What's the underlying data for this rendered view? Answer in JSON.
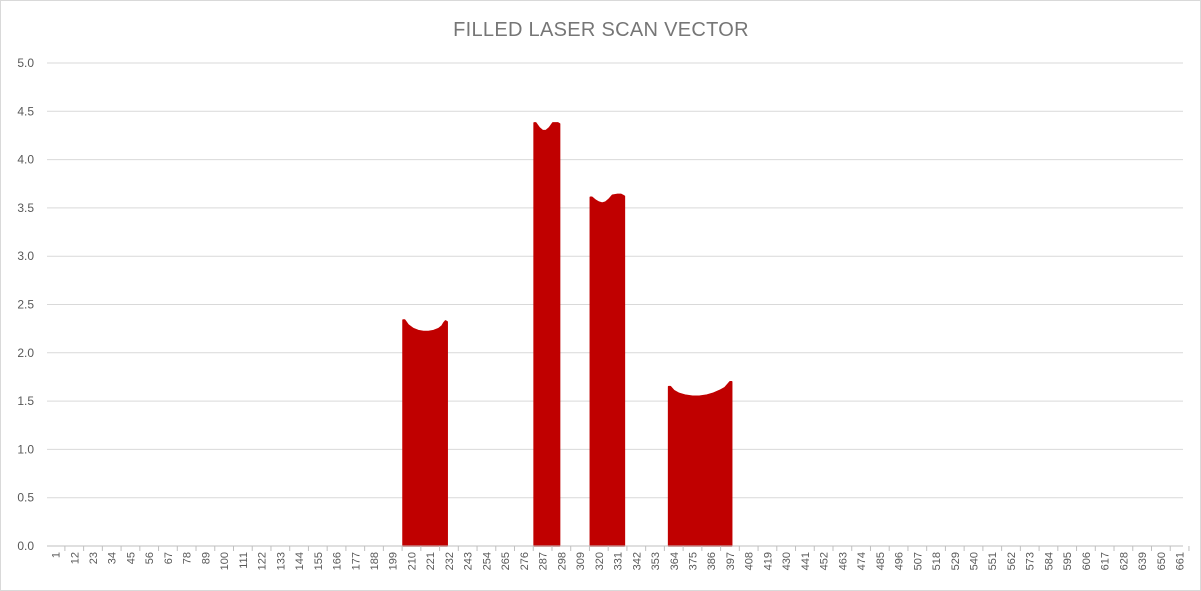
{
  "chart_data": {
    "type": "area",
    "title": "FILLED LASER SCAN VECTOR",
    "xlabel": "",
    "ylabel": "",
    "ylim": [
      0,
      5
    ],
    "y_ticks": [
      "0.0",
      "0.5",
      "1.0",
      "1.5",
      "2.0",
      "2.5",
      "3.0",
      "3.5",
      "4.0",
      "4.5",
      "5.0"
    ],
    "x_range": [
      1,
      668
    ],
    "x_ticks": [
      "1",
      "12",
      "23",
      "34",
      "45",
      "56",
      "67",
      "78",
      "89",
      "100",
      "111",
      "122",
      "133",
      "144",
      "155",
      "166",
      "177",
      "188",
      "199",
      "210",
      "221",
      "232",
      "243",
      "254",
      "265",
      "276",
      "287",
      "298",
      "309",
      "320",
      "331",
      "342",
      "353",
      "364",
      "375",
      "386",
      "397",
      "408",
      "419",
      "430",
      "441",
      "452",
      "463",
      "474",
      "485",
      "496",
      "507",
      "518",
      "529",
      "540",
      "551",
      "562",
      "573",
      "584",
      "595",
      "606",
      "617",
      "628",
      "639",
      "650",
      "661"
    ],
    "grid": true,
    "legend": "none",
    "color": "#c00000",
    "series": [
      {
        "x": [
          210,
          211,
          213,
          216,
          219,
          222,
          225,
          228,
          231,
          233,
          234,
          235,
          236,
          287,
          288,
          290,
          292,
          294,
          296,
          298,
          300,
          301,
          302,
          320,
          321,
          323,
          325,
          327,
          329,
          331,
          333,
          336,
          338,
          339,
          340,
          366,
          367,
          369,
          372,
          376,
          380,
          384,
          388,
          392,
          396,
          399,
          401,
          402,
          403
        ],
        "y": [
          2.34,
          2.34,
          2.29,
          2.25,
          2.23,
          2.22,
          2.22,
          2.23,
          2.25,
          2.28,
          2.31,
          2.33,
          2.32,
          4.38,
          4.38,
          4.33,
          4.3,
          4.3,
          4.33,
          4.38,
          4.38,
          4.38,
          4.37,
          3.61,
          3.61,
          3.58,
          3.56,
          3.55,
          3.56,
          3.59,
          3.63,
          3.64,
          3.64,
          3.63,
          3.62,
          1.65,
          1.65,
          1.61,
          1.58,
          1.56,
          1.55,
          1.55,
          1.56,
          1.58,
          1.61,
          1.64,
          1.68,
          1.7,
          1.7
        ]
      }
    ]
  }
}
